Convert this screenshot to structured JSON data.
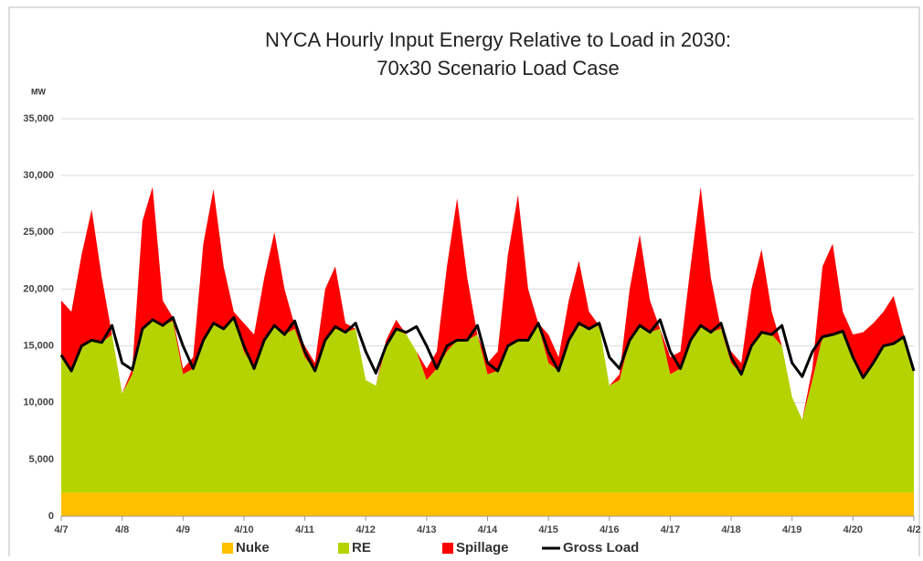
{
  "chart_data": {
    "type": "stacked_area_line",
    "title": [
      "NYCA Hourly Input Energy Relative to Load in 2030:",
      "70x30 Scenario Load Case"
    ],
    "y_label": "MW",
    "x": [
      0,
      4,
      8,
      12,
      16,
      20,
      24,
      28,
      32,
      36,
      40,
      44,
      48,
      52,
      56,
      60,
      64,
      68,
      72,
      76,
      80,
      84,
      88,
      92,
      96,
      100,
      104,
      108,
      112,
      116,
      120,
      124,
      128,
      132,
      136,
      140,
      144,
      148,
      152,
      156,
      160,
      164,
      168,
      172,
      176,
      180,
      184,
      188,
      192,
      196,
      200,
      204,
      208,
      212,
      216,
      220,
      224,
      228,
      232,
      236,
      240,
      244,
      248,
      252,
      256,
      260,
      264,
      268,
      272,
      276,
      280,
      284,
      288,
      292,
      296,
      300,
      304,
      308,
      312,
      316,
      320,
      324,
      328,
      332,
      336
    ],
    "xlim": [
      0,
      336
    ],
    "xticks": [
      {
        "value": 0,
        "label": "4/7"
      },
      {
        "value": 24,
        "label": "4/8"
      },
      {
        "value": 48,
        "label": "4/9"
      },
      {
        "value": 72,
        "label": "4/10"
      },
      {
        "value": 96,
        "label": "4/11"
      },
      {
        "value": 120,
        "label": "4/12"
      },
      {
        "value": 144,
        "label": "4/13"
      },
      {
        "value": 168,
        "label": "4/14"
      },
      {
        "value": 192,
        "label": "4/15"
      },
      {
        "value": 216,
        "label": "4/16"
      },
      {
        "value": 240,
        "label": "4/17"
      },
      {
        "value": 264,
        "label": "4/18"
      },
      {
        "value": 288,
        "label": "4/19"
      },
      {
        "value": 312,
        "label": "4/20"
      },
      {
        "value": 336,
        "label": "4/2"
      }
    ],
    "ylim": [
      0,
      35000
    ],
    "yticks": [
      0,
      {
        "value": 5000,
        "label": "5,000"
      },
      {
        "value": 10000,
        "label": "10,000"
      },
      {
        "value": 15000,
        "label": "15,000"
      },
      {
        "value": 20000,
        "label": "20,000"
      },
      {
        "value": 25000,
        "label": "25,000"
      },
      {
        "value": 30000,
        "label": "30,000"
      },
      {
        "value": 35000,
        "label": "35,000"
      }
    ],
    "grid": true,
    "legend": "bottom",
    "series": [
      {
        "name": "Nuke",
        "color": "#ffc000",
        "kind": "area",
        "values": [
          2100,
          2100,
          2100,
          2100,
          2100,
          2100,
          2100,
          2100,
          2100,
          2100,
          2100,
          2100,
          2100,
          2100,
          2100,
          2100,
          2100,
          2100,
          2100,
          2100,
          2100,
          2100,
          2100,
          2100,
          2100,
          2100,
          2100,
          2100,
          2100,
          2100,
          2100,
          2100,
          2100,
          2100,
          2100,
          2100,
          2100,
          2100,
          2100,
          2100,
          2100,
          2100,
          2100,
          2100,
          2100,
          2100,
          2100,
          2100,
          2100,
          2100,
          2100,
          2100,
          2100,
          2100,
          2100,
          2100,
          2100,
          2100,
          2100,
          2100,
          2100,
          2100,
          2100,
          2100,
          2100,
          2100,
          2100,
          2100,
          2100,
          2100,
          2100,
          2100,
          2100,
          2100,
          2100,
          2100,
          2100,
          2100,
          2100,
          2100,
          2100,
          2100,
          2100,
          2100,
          2100
        ]
      },
      {
        "name": "RE",
        "color": "#b5d300",
        "kind": "area",
        "values": [
          11900,
          10700,
          12700,
          13400,
          13200,
          13900,
          8700,
          10400,
          14400,
          15200,
          14700,
          15100,
          10400,
          10900,
          13400,
          14900,
          14400,
          15400,
          12400,
          10900,
          13400,
          14700,
          13900,
          14400,
          11900,
          10700,
          13400,
          14400,
          14100,
          14400,
          9900,
          9400,
          12900,
          14400,
          13900,
          12400,
          9900,
          10900,
          12400,
          13400,
          13400,
          13900,
          10400,
          10700,
          12900,
          13400,
          13400,
          14700,
          11400,
          10700,
          13400,
          14700,
          14400,
          14700,
          9400,
          9900,
          13400,
          14700,
          14100,
          14400,
          10400,
          10900,
          13400,
          14700,
          14100,
          14400,
          11400,
          10400,
          12900,
          14100,
          13900,
          12900,
          8400,
          6400,
          9900,
          13700,
          13900,
          14200,
          11900,
          10100,
          11400,
          12900,
          13100,
          13700,
          10700
        ]
      },
      {
        "name": "Spillage",
        "color": "#ff0000",
        "kind": "area",
        "values": [
          5000,
          5200,
          8200,
          11500,
          5700,
          0,
          0,
          500,
          9500,
          11700,
          2200,
          300,
          500,
          1000,
          8500,
          11800,
          5500,
          500,
          2500,
          3000,
          5500,
          8200,
          4000,
          300,
          1000,
          700,
          4500,
          5500,
          800,
          0,
          0,
          0,
          500,
          800,
          0,
          0,
          1000,
          1500,
          7500,
          12500,
          5500,
          0,
          1000,
          1700,
          8000,
          12800,
          4500,
          200,
          2500,
          1200,
          3500,
          5700,
          1500,
          0,
          0,
          500,
          4500,
          8000,
          2800,
          0,
          1500,
          1500,
          6500,
          12200,
          4800,
          0,
          1000,
          1000,
          5000,
          7300,
          2000,
          0,
          0,
          0,
          1000,
          6200,
          8000,
          1700,
          2000,
          4000,
          3500,
          3000,
          4200,
          200,
          0
        ]
      },
      {
        "name": "Gross Load",
        "color": "#000000",
        "kind": "line",
        "values": [
          14200,
          12800,
          15000,
          15500,
          15300,
          16800,
          13500,
          12900,
          16500,
          17300,
          16800,
          17500,
          15000,
          13000,
          15500,
          17000,
          16500,
          17500,
          15000,
          13000,
          15500,
          16800,
          16000,
          17200,
          14500,
          12800,
          15500,
          16700,
          16200,
          17000,
          14500,
          12600,
          15000,
          16500,
          16200,
          16700,
          15000,
          13000,
          15000,
          15500,
          15500,
          16800,
          13500,
          12800,
          15000,
          15500,
          15500,
          17000,
          14500,
          12800,
          15500,
          17000,
          16500,
          17000,
          14000,
          13000,
          15500,
          16800,
          16200,
          17300,
          14500,
          13000,
          15500,
          16800,
          16200,
          17000,
          14000,
          12500,
          15000,
          16200,
          16000,
          16800,
          13500,
          12300,
          14500,
          15800,
          16000,
          16300,
          14000,
          12200,
          13500,
          15000,
          15200,
          15800,
          12800
        ]
      }
    ]
  }
}
